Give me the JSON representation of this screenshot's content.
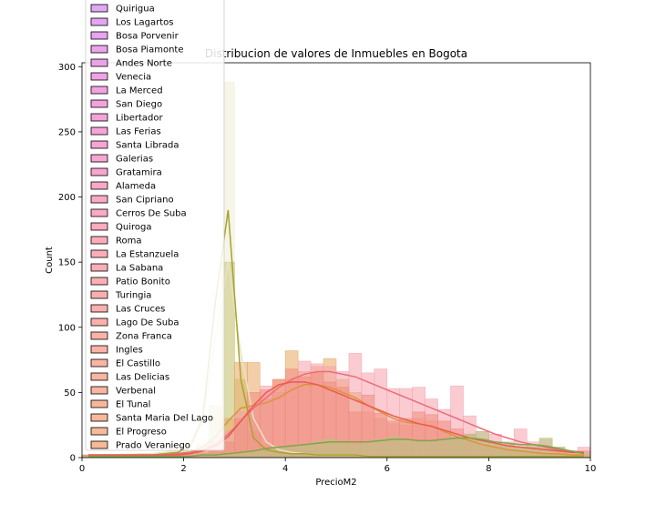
{
  "chart_data": {
    "type": "bar",
    "title": "Distribucion de valores de Inmuebles en Bogota",
    "xlabel": "PrecioM2",
    "ylabel": "Count",
    "xlim": [
      0,
      10
    ],
    "ylim": [
      0,
      303
    ],
    "xticks": [
      "0",
      "2",
      "4",
      "6",
      "8",
      "10"
    ],
    "yticks": [
      "0",
      "50",
      "100",
      "150",
      "200",
      "250",
      "300"
    ],
    "grid": false,
    "legend_position": "top-left",
    "legend": [
      {
        "label": "Quirigua",
        "color": "#e0a8f0"
      },
      {
        "label": "Los Lagartos",
        "color": "#e3a6ee"
      },
      {
        "label": "Bosa Porvenir",
        "color": "#e6a5ec"
      },
      {
        "label": "Bosa Piamonte",
        "color": "#e9a4ea"
      },
      {
        "label": "Andes Norte",
        "color": "#eba3e7"
      },
      {
        "label": "Venecia",
        "color": "#eea3e4"
      },
      {
        "label": "La Merced",
        "color": "#f0a3e1"
      },
      {
        "label": "San Diego",
        "color": "#f2a3de"
      },
      {
        "label": "Libertador",
        "color": "#f4a3da"
      },
      {
        "label": "Las Ferias",
        "color": "#f5a4d7"
      },
      {
        "label": "Santa Librada",
        "color": "#f6a5d3"
      },
      {
        "label": "Galerias",
        "color": "#f7a6d0"
      },
      {
        "label": "Gratamira",
        "color": "#f8a7cc"
      },
      {
        "label": "Alameda",
        "color": "#f9a8c9"
      },
      {
        "label": "San Cipriano",
        "color": "#f9a9c5"
      },
      {
        "label": "Cerros De Suba",
        "color": "#faaac2"
      },
      {
        "label": "Quiroga",
        "color": "#faabbf"
      },
      {
        "label": "Roma",
        "color": "#faacbb"
      },
      {
        "label": "La Estanzuela",
        "color": "#faadb8"
      },
      {
        "label": "La Sabana",
        "color": "#faaeb5"
      },
      {
        "label": "Patio Bonito",
        "color": "#faafb2"
      },
      {
        "label": "Turingia",
        "color": "#faafaf"
      },
      {
        "label": "Las Cruces",
        "color": "#fab0ac"
      },
      {
        "label": "Lago De Suba",
        "color": "#fab1aa"
      },
      {
        "label": "Zona Franca",
        "color": "#f9b2a7"
      },
      {
        "label": "Ingles",
        "color": "#f9b3a5"
      },
      {
        "label": "El Castillo",
        "color": "#f9b4a3"
      },
      {
        "label": "Las Delicias",
        "color": "#f8b5a1"
      },
      {
        "label": "Verbenal",
        "color": "#f8b69f"
      },
      {
        "label": "El Tunal",
        "color": "#f7b79d"
      },
      {
        "label": "Santa Maria Del Lago",
        "color": "#f7b89b"
      },
      {
        "label": "El Progreso",
        "color": "#f6b99a"
      },
      {
        "label": "Prado Veraniego",
        "color": "#f5ba99"
      }
    ],
    "bin_edges": [
      0,
      0.25,
      0.5,
      0.75,
      1,
      1.25,
      1.5,
      1.75,
      2,
      2.25,
      2.5,
      2.75,
      3,
      3.25,
      3.5,
      3.75,
      4,
      4.25,
      4.5,
      4.75,
      5,
      5.25,
      5.5,
      5.75,
      6,
      6.25,
      6.5,
      6.75,
      7,
      7.25,
      7.5,
      7.75,
      8,
      8.25,
      8.5,
      8.75,
      9,
      9.25,
      9.5,
      9.75,
      10
    ],
    "series": [
      {
        "color": "#eeedd6",
        "kde_color": "#e6e3c4",
        "values": [
          2,
          2,
          2,
          3,
          3,
          3,
          4,
          5,
          8,
          14,
          30,
          288,
          22,
          10,
          6,
          4,
          3,
          2,
          2,
          2,
          2,
          1,
          1,
          1,
          1,
          1,
          1,
          1,
          1,
          1,
          1,
          1,
          1,
          1,
          1,
          1,
          1,
          1,
          1,
          1
        ],
        "kde": [
          2,
          2,
          2,
          2,
          3,
          3,
          4,
          6,
          12,
          30,
          90,
          150,
          80,
          30,
          12,
          6,
          4,
          3,
          2,
          2,
          2,
          2,
          1,
          1,
          1,
          1,
          1,
          1,
          1,
          1,
          1,
          1,
          1,
          1,
          1,
          1,
          1,
          1,
          1,
          1
        ]
      },
      {
        "color": "#c8c477",
        "kde_color": "#a7a32d",
        "values": [
          2,
          2,
          2,
          2,
          2,
          2,
          3,
          4,
          6,
          10,
          40,
          150,
          60,
          20,
          8,
          5,
          4,
          3,
          2,
          2,
          2,
          1,
          1,
          1,
          1,
          1,
          1,
          1,
          1,
          1,
          1,
          1,
          1,
          1,
          1,
          1,
          1,
          1,
          1,
          1
        ],
        "kde": [
          2,
          2,
          2,
          2,
          2,
          2,
          3,
          4,
          8,
          30,
          120,
          190,
          60,
          15,
          6,
          4,
          3,
          3,
          2,
          2,
          2,
          2,
          1,
          1,
          1,
          1,
          1,
          1,
          1,
          1,
          1,
          1,
          1,
          1,
          1,
          1,
          1,
          1,
          1,
          1
        ]
      },
      {
        "color": "#e7a760",
        "kde_color": "#d89538",
        "values": [
          2,
          2,
          2,
          2,
          2,
          2,
          2,
          3,
          3,
          5,
          12,
          30,
          73,
          73,
          45,
          60,
          82,
          66,
          70,
          76,
          60,
          50,
          35,
          30,
          26,
          25,
          30,
          28,
          20,
          15,
          12,
          10,
          8,
          6,
          5,
          4,
          3,
          3,
          2,
          2
        ],
        "kde": [
          2,
          2,
          2,
          2,
          2,
          2,
          2,
          3,
          4,
          8,
          16,
          28,
          38,
          40,
          42,
          46,
          52,
          56,
          56,
          54,
          50,
          46,
          40,
          35,
          30,
          27,
          26,
          24,
          20,
          16,
          13,
          10,
          8,
          6,
          5,
          4,
          3,
          3,
          2,
          2
        ]
      },
      {
        "color": "#f5a3ad",
        "kde_color": "#ec6b7b",
        "values": [
          2,
          2,
          2,
          2,
          2,
          2,
          2,
          2,
          3,
          5,
          10,
          20,
          35,
          40,
          55,
          50,
          60,
          74,
          72,
          70,
          66,
          80,
          65,
          68,
          53,
          53,
          54,
          45,
          37,
          55,
          32,
          20,
          18,
          12,
          22,
          12,
          14,
          8,
          5,
          8
        ],
        "kde": [
          2,
          2,
          2,
          2,
          2,
          2,
          2,
          3,
          4,
          6,
          10,
          18,
          28,
          38,
          46,
          54,
          60,
          64,
          66,
          66,
          64,
          62,
          58,
          54,
          50,
          46,
          42,
          38,
          34,
          30,
          26,
          22,
          18,
          15,
          12,
          10,
          8,
          6,
          5,
          4
        ]
      },
      {
        "color": "#f08a7e",
        "kde_color": "#ec5a50",
        "values": [
          2,
          2,
          2,
          2,
          2,
          2,
          2,
          2,
          2,
          3,
          6,
          12,
          30,
          50,
          52,
          60,
          68,
          62,
          65,
          58,
          54,
          35,
          48,
          34,
          28,
          30,
          35,
          33,
          28,
          22,
          18,
          14,
          12,
          10,
          8,
          8,
          7,
          6,
          5,
          5
        ],
        "kde": [
          2,
          2,
          2,
          2,
          2,
          2,
          2,
          2,
          3,
          5,
          9,
          16,
          28,
          40,
          50,
          56,
          58,
          58,
          56,
          52,
          48,
          44,
          40,
          36,
          32,
          29,
          26,
          24,
          21,
          18,
          15,
          13,
          11,
          9,
          8,
          7,
          6,
          5,
          4,
          4
        ]
      },
      {
        "color": "#b5c77d",
        "kde_color": "#7fa54a",
        "values": [
          1,
          1,
          1,
          1,
          1,
          1,
          1,
          1,
          1,
          2,
          2,
          3,
          4,
          5,
          6,
          8,
          9,
          10,
          12,
          14,
          12,
          10,
          12,
          14,
          16,
          14,
          12,
          12,
          14,
          16,
          18,
          20,
          12,
          10,
          8,
          10,
          15,
          8,
          4,
          3
        ],
        "kde": [
          1,
          1,
          1,
          1,
          1,
          1,
          1,
          1,
          1,
          2,
          2,
          3,
          4,
          5,
          7,
          8,
          9,
          10,
          11,
          12,
          12,
          12,
          12,
          13,
          14,
          14,
          13,
          13,
          14,
          15,
          15,
          14,
          12,
          11,
          10,
          10,
          9,
          7,
          5,
          3
        ]
      }
    ]
  }
}
